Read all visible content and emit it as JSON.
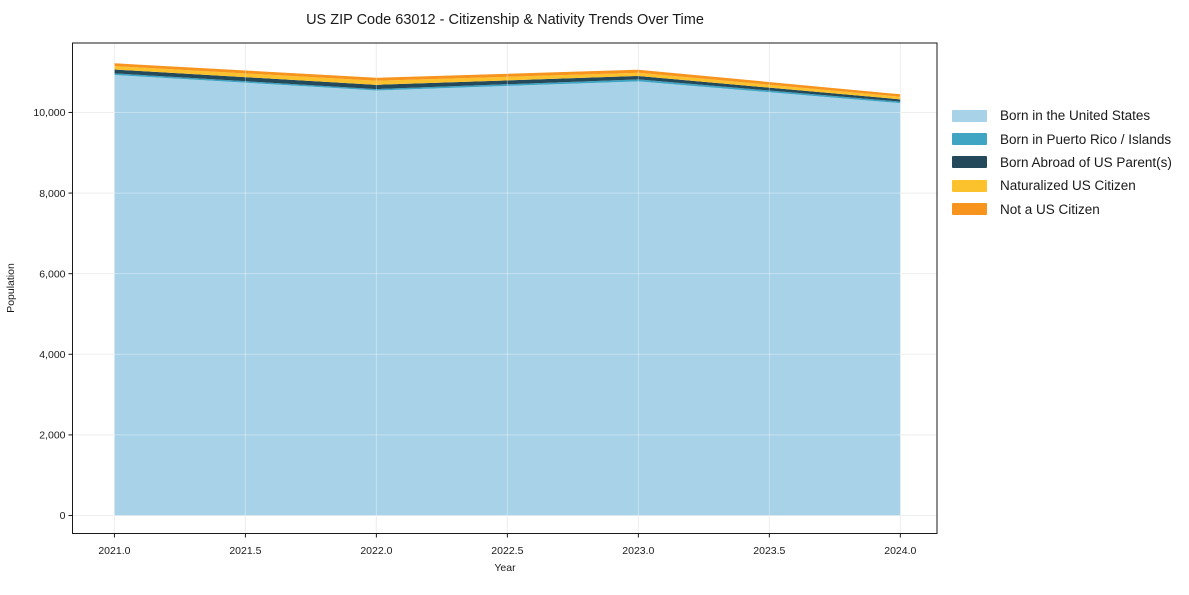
{
  "chart_data": {
    "type": "area",
    "stacked": true,
    "title": "US ZIP Code 63012 - Citizenship & Nativity Trends Over Time",
    "xlabel": "Year",
    "ylabel": "Population",
    "x": [
      2021,
      2022,
      2023,
      2024
    ],
    "series": [
      {
        "name": "Born in the United States",
        "color": "#a8d2e8",
        "values": [
          10930,
          10545,
          10770,
          10230
        ]
      },
      {
        "name": "Born in Puerto Rico / Islands",
        "color": "#3fa5c3",
        "values": [
          40,
          35,
          50,
          40
        ]
      },
      {
        "name": "Born Abroad of US Parent(s)",
        "color": "#23495b",
        "values": [
          95,
          105,
          85,
          55
        ]
      },
      {
        "name": "Naturalized US Citizen",
        "color": "#fcc22d",
        "values": [
          85,
          100,
          80,
          65
        ]
      },
      {
        "name": "Not a US Citizen",
        "color": "#f7941e",
        "values": [
          70,
          75,
          75,
          60
        ]
      }
    ],
    "xlim": [
      2020.84,
      2024.14
    ],
    "ylim": [
      -446,
      11723
    ],
    "xticks": [
      {
        "value": 2021.0,
        "label": "2021.0"
      },
      {
        "value": 2021.5,
        "label": "2021.5"
      },
      {
        "value": 2022.0,
        "label": "2022.0"
      },
      {
        "value": 2022.5,
        "label": "2022.5"
      },
      {
        "value": 2023.0,
        "label": "2023.0"
      },
      {
        "value": 2023.5,
        "label": "2023.5"
      },
      {
        "value": 2024.0,
        "label": "2024.0"
      }
    ],
    "yticks": [
      {
        "value": 0,
        "label": "0"
      },
      {
        "value": 2000,
        "label": "2,000"
      },
      {
        "value": 4000,
        "label": "4,000"
      },
      {
        "value": 6000,
        "label": "6,000"
      },
      {
        "value": 8000,
        "label": "8,000"
      },
      {
        "value": 10000,
        "label": "10,000"
      }
    ],
    "grid": true,
    "legend_position": "right-outside"
  },
  "colors": {
    "background": "#ffffff",
    "grid": "#e7e7e7",
    "axis": "#1a1a1a"
  }
}
